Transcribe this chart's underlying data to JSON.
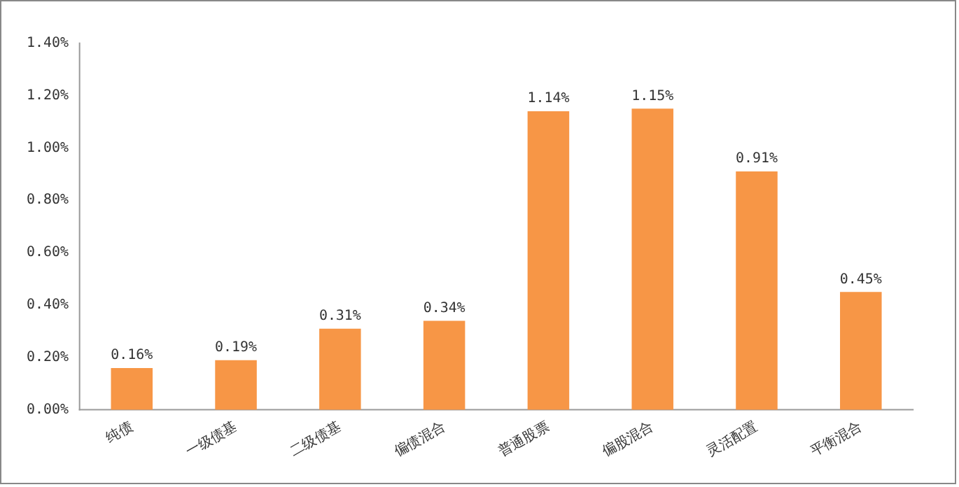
{
  "chart_data": {
    "type": "bar",
    "categories": [
      "纯债",
      "一级债基",
      "二级债基",
      "偏债混合",
      "普通股票",
      "偏股混合",
      "灵活配置",
      "平衡混合"
    ],
    "values": [
      0.16,
      0.19,
      0.31,
      0.34,
      1.14,
      1.15,
      0.91,
      0.45
    ],
    "value_labels": [
      "0.16%",
      "0.19%",
      "0.31%",
      "0.34%",
      "1.14%",
      "1.15%",
      "0.91%",
      "0.45%"
    ],
    "color": "#f79646",
    "ylim": [
      0,
      1.4
    ],
    "yticks": [
      {
        "value": 0,
        "label": "0.00%"
      },
      {
        "value": 0.2,
        "label": "0.20%"
      },
      {
        "value": 0.4,
        "label": "0.40%"
      },
      {
        "value": 0.6,
        "label": "0.60%"
      },
      {
        "value": 0.8,
        "label": "0.80%"
      },
      {
        "value": 1.0,
        "label": "1.00%"
      },
      {
        "value": 1.2,
        "label": "1.20%"
      },
      {
        "value": 1.4,
        "label": "1.40%"
      }
    ],
    "grid": false,
    "legend": false
  }
}
